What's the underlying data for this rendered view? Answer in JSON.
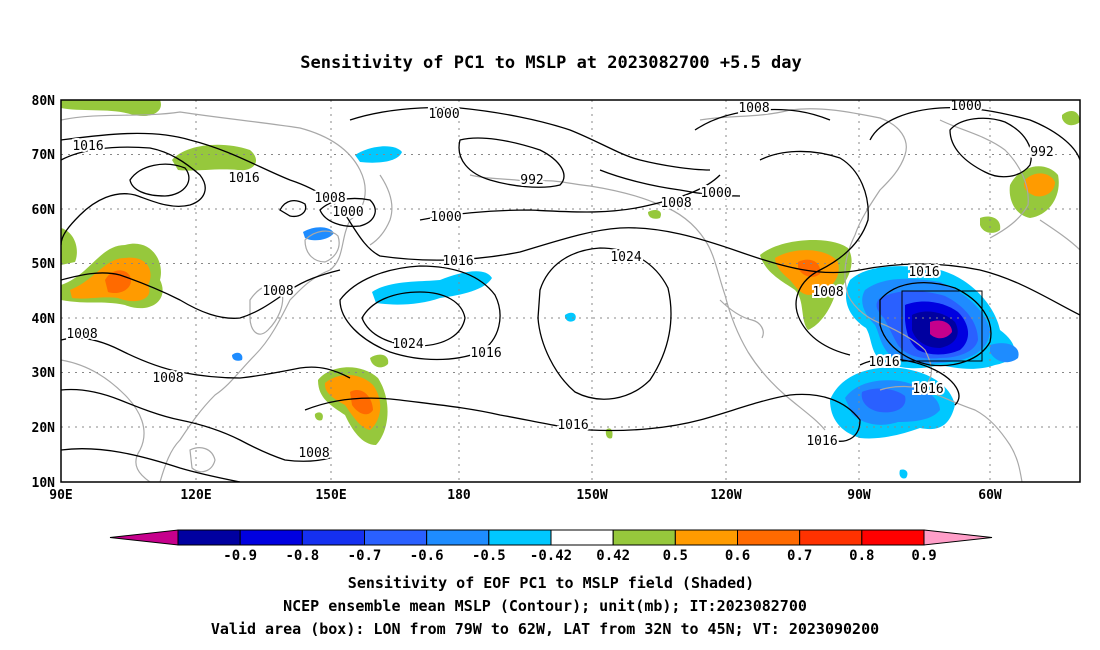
{
  "title": "Sensitivity of PC1 to MSLP at 2023082700 +5.5 day",
  "lat_labels": [
    "80N",
    "70N",
    "60N",
    "50N",
    "40N",
    "30N",
    "20N",
    "10N"
  ],
  "lon_labels": [
    "90E",
    "120E",
    "150E",
    "180",
    "150W",
    "120W",
    "90W",
    "60W"
  ],
  "colorbar": {
    "labels": [
      "-0.9",
      "-0.8",
      "-0.7",
      "-0.6",
      "-0.5",
      "-0.42",
      "0.42",
      "0.5",
      "0.6",
      "0.7",
      "0.8",
      "0.9"
    ],
    "colors": [
      "#c6008c",
      "#0000a0",
      "#0000e0",
      "#1530f0",
      "#2a60ff",
      "#1e8cff",
      "#00c8ff",
      "#ffffff",
      "#96c83c",
      "#ff9b00",
      "#ff6a00",
      "#ff3200",
      "#ff0000",
      "#ff9ec8"
    ]
  },
  "contour_labels": [
    {
      "text": "1000",
      "ref": "a"
    },
    {
      "text": "1016",
      "ref": "b"
    },
    {
      "text": "1016",
      "ref": "c"
    },
    {
      "text": "1008",
      "ref": "d"
    },
    {
      "text": "1000",
      "ref": "e"
    },
    {
      "text": "992",
      "ref": "f"
    },
    {
      "text": "1000",
      "ref": "g"
    },
    {
      "text": "1008",
      "ref": "h"
    },
    {
      "text": "1000",
      "ref": "i"
    },
    {
      "text": "1008",
      "ref": "j"
    },
    {
      "text": "1000",
      "ref": "k"
    },
    {
      "text": "992",
      "ref": "l"
    },
    {
      "text": "1016",
      "ref": "m"
    },
    {
      "text": "1024",
      "ref": "n"
    },
    {
      "text": "1008",
      "ref": "o"
    },
    {
      "text": "1008",
      "ref": "p"
    },
    {
      "text": "1024",
      "ref": "q"
    },
    {
      "text": "1016",
      "ref": "r"
    },
    {
      "text": "1008",
      "ref": "s"
    },
    {
      "text": "1016",
      "ref": "t"
    },
    {
      "text": "1016",
      "ref": "u"
    },
    {
      "text": "1016",
      "ref": "v"
    },
    {
      "text": "1016",
      "ref": "w"
    },
    {
      "text": "1016",
      "ref": "x"
    },
    {
      "text": "1008",
      "ref": "y"
    },
    {
      "text": "1008",
      "ref": "z"
    }
  ],
  "captions": [
    "Sensitivity of EOF PC1 to MSLP field (Shaded)",
    "NCEP ensemble mean MSLP (Contour); unit(mb); IT:2023082700",
    "Valid area (box): LON from 79W to 62W, LAT from 32N to 45N; VT: 2023090200"
  ],
  "valid_box": {
    "lon_from": "79W",
    "lon_to": "62W",
    "lat_from": "32N",
    "lat_to": "45N"
  }
}
